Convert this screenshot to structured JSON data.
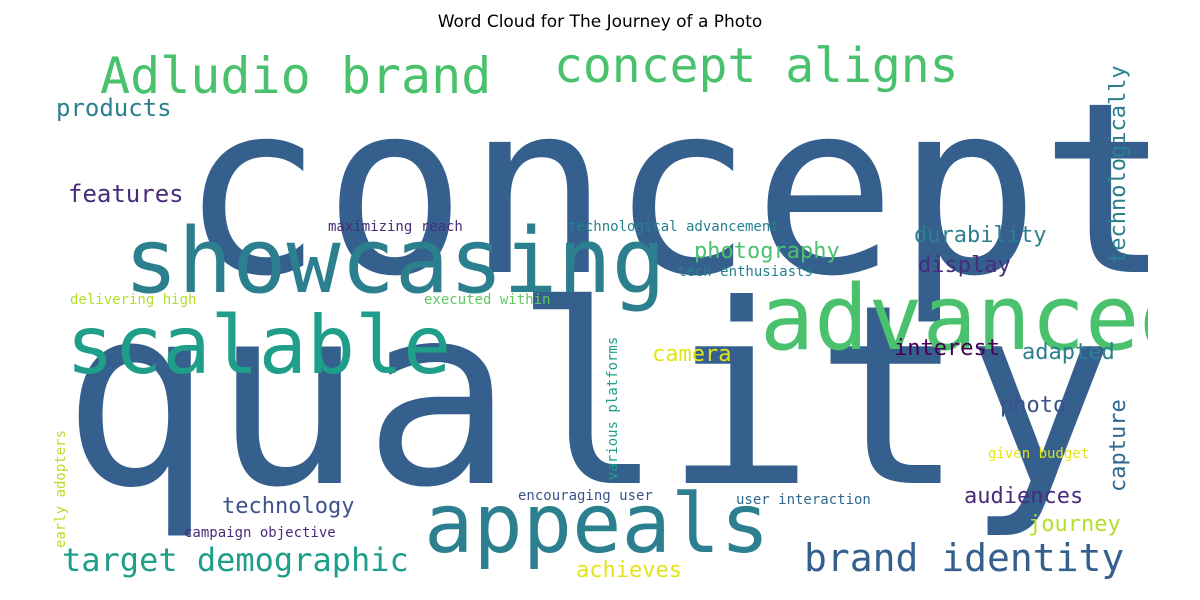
{
  "title": "Word Cloud for The Journey of a Photo",
  "colors": {
    "c1": "#35608d",
    "c2": "#2c7f8e",
    "c3": "#1f9e89",
    "c4": "#4ac16d",
    "c5": "#b5de2b",
    "c6": "#e3e418",
    "c7": "#472c7a",
    "c8": "#3b528b",
    "c9": "#5ec962",
    "c10": "#26828e",
    "c11": "#31688e",
    "c12": "#440154"
  },
  "words": {
    "concept": "concept",
    "quality": "quality",
    "showcasing": "showcasing",
    "advanced": "advanced",
    "appeals": "appeals",
    "scalable": "scalable",
    "adludio_brand": "Adludio brand",
    "concept_aligns": "concept aligns",
    "brand_identity": "brand identity",
    "target_demographic": "target demographic",
    "products": "products",
    "features": "features",
    "technologically": "technologically",
    "durability": "durability",
    "photography": "photography",
    "display": "display",
    "technological_advancement": "technological advancement",
    "maximizing_reach": "maximizing reach",
    "tech_enthusiasts": "tech enthusiasts",
    "delivering_high": "delivering high",
    "executed_within": "executed within",
    "camera": "camera",
    "interest": "interest",
    "adapted": "adapted",
    "photo": "photo",
    "capture": "capture",
    "various_platforms": "various platforms",
    "early_adopters": "early adopters",
    "given_budget": "given budget",
    "technology": "technology",
    "audiences": "audiences",
    "journey": "journey",
    "encouraging_user": "encouraging user",
    "user_interaction": "user interaction",
    "campaign_objective": "campaign objective",
    "achieves": "achieves"
  }
}
